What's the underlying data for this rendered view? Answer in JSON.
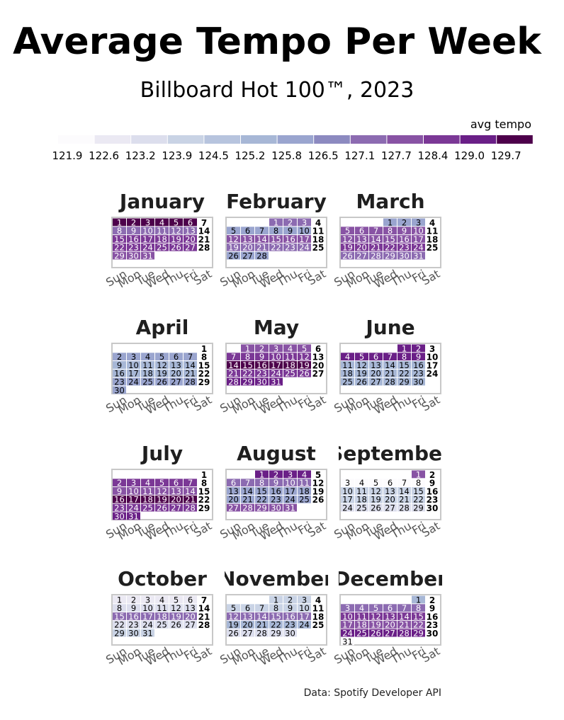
{
  "title": "Average Tempo Per Week",
  "subtitle": "Billboard Hot 100™, 2023",
  "legend_title": "avg tempo",
  "legend_ticks": [
    "121.9",
    "122.6",
    "123.2",
    "123.9",
    "124.5",
    "125.2",
    "125.8",
    "126.5",
    "127.1",
    "127.7",
    "128.4",
    "129.0",
    "129.7"
  ],
  "caption": "Data: Spotify Developer API",
  "weekday_labels": [
    "Sun",
    "Mon",
    "Tue",
    "Wed",
    "Thu",
    "Fri",
    "Sat"
  ],
  "colors": {
    "scale": [
      "#fcfbfd",
      "#ebe9f3",
      "#dcdeed",
      "#c9d3e5",
      "#b7c4de",
      "#a7b7d6",
      "#9aa5cf",
      "#8c8ac0",
      "#8c6bb1",
      "#8853a4",
      "#7b3896",
      "#6a1f87",
      "#4d004b"
    ]
  },
  "chart_data": {
    "type": "heatmap",
    "description_source": "calendar heatmap, one cell per day, shaded by weekly average tempo; Saturday column shows bold day numbers",
    "months": [
      {
        "name": "January",
        "start_weekday": 0,
        "days": 31,
        "week_tempo": [
          129.7,
          127.1,
          128.4,
          128.4,
          127.7,
          127.1
        ]
      },
      {
        "name": "February",
        "start_weekday": 3,
        "days": 28,
        "week_tempo": [
          127.1,
          125.8,
          127.7,
          127.1,
          125.8
        ]
      },
      {
        "name": "March",
        "start_weekday": 3,
        "days": 31,
        "week_tempo": [
          125.8,
          127.7,
          127.7,
          128.4,
          127.1
        ]
      },
      {
        "name": "April",
        "start_weekday": 6,
        "days": 30,
        "week_tempo": [
          125.8,
          125.8,
          125.2,
          125.2,
          125.8
        ]
      },
      {
        "name": "May",
        "start_weekday": 1,
        "days": 31,
        "week_tempo": [
          127.7,
          128.4,
          129.7,
          128.4,
          129.0
        ]
      },
      {
        "name": "June",
        "start_weekday": 4,
        "days": 30,
        "week_tempo": [
          129.0,
          129.0,
          125.2,
          125.2,
          125.2
        ]
      },
      {
        "name": "July",
        "start_weekday": 6,
        "days": 31,
        "week_tempo": [
          125.8,
          128.4,
          127.7,
          129.7,
          128.4,
          129.0
        ]
      },
      {
        "name": "August",
        "start_weekday": 2,
        "days": 31,
        "week_tempo": [
          129.0,
          127.1,
          125.8,
          125.8,
          127.7
        ]
      },
      {
        "name": "September",
        "start_weekday": 5,
        "days": 30,
        "week_tempo": [
          127.7,
          121.9,
          123.9,
          123.9,
          123.2
        ]
      },
      {
        "name": "October",
        "start_weekday": 0,
        "days": 31,
        "week_tempo": [
          122.6,
          123.2,
          127.1,
          123.2,
          123.9
        ]
      },
      {
        "name": "November",
        "start_weekday": 3,
        "days": 30,
        "week_tempo": [
          123.9,
          123.9,
          127.1,
          125.2,
          123.2
        ]
      },
      {
        "name": "December",
        "start_weekday": 5,
        "days": 31,
        "week_tempo": [
          125.2,
          127.1,
          128.4,
          127.7,
          129.0,
          121.9
        ]
      }
    ],
    "color_range": [
      121.9,
      129.7
    ]
  }
}
